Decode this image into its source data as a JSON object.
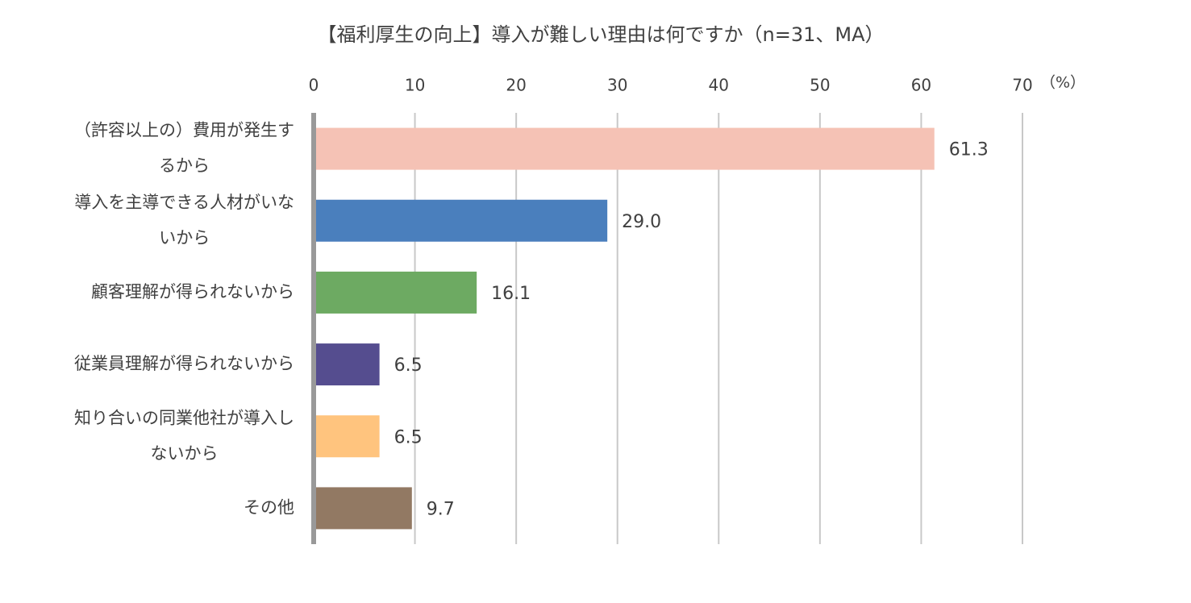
{
  "chart_data": {
    "type": "hbar",
    "title": "【福利厚生の向上】導入が難しい理由は何ですか（n=31、MA）",
    "unit_label": "（%）",
    "categories": [
      "（許容以上の）費用が発生するから",
      "導入を主導できる人材がいないから",
      "顧客理解が得られないから",
      "従業員理解が得られないから",
      "知り合いの同業他社が導入しないから",
      "その他"
    ],
    "values": [
      61.3,
      29,
      16.1,
      6.5,
      6.5,
      9.7
    ],
    "value_labels": [
      "61.3",
      "29.0",
      "16.1",
      "6.5",
      "6.5",
      "9.7"
    ],
    "colors": [
      "#f5c2b5",
      "#4a7fbd",
      "#6daa62",
      "#554d8f",
      "#ffc47e",
      "#927963"
    ],
    "xlim": [
      0,
      70
    ],
    "xticks": [
      0,
      10,
      20,
      30,
      40,
      50,
      60,
      70
    ],
    "grid": true
  }
}
